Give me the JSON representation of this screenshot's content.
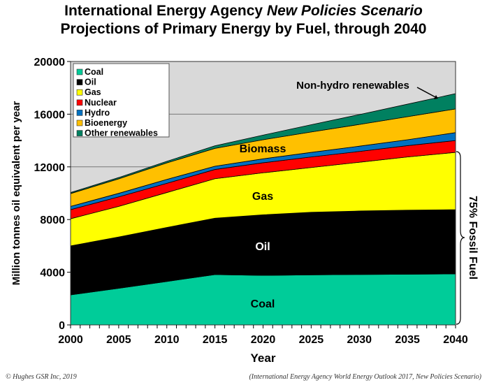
{
  "title_line1_prefix": "International Energy Agency ",
  "title_line1_italic": "New Policies Scenario",
  "title_line2": "Projections of Primary Energy by Fuel, through 2040",
  "footer_left": "© Hughes GSR Inc, 2019",
  "footer_right": "(International Energy Agency World Energy Outlook 2017, New Policies Scenario)",
  "chart_data": {
    "type": "area",
    "stacked": true,
    "title": "International Energy Agency New Policies Scenario Projections of Primary Energy by Fuel, through 2040",
    "xlabel": "Year",
    "ylabel": "Million tonnes oil equivalent per year",
    "xlim": [
      2000,
      2040
    ],
    "ylim": [
      0,
      20000
    ],
    "x": [
      2000,
      2005,
      2010,
      2015,
      2020,
      2025,
      2030,
      2035,
      2040
    ],
    "xticks": [
      "2000",
      "2005",
      "2010",
      "2015",
      "2020",
      "2025",
      "2030",
      "2035",
      "2040"
    ],
    "yticks": [
      "0",
      "4000",
      "8000",
      "12000",
      "16000",
      "20000"
    ],
    "grid": "horizontal",
    "legend": "top-left",
    "series": [
      {
        "name": "Coal",
        "color": "#00cc99",
        "values": [
          2280,
          2780,
          3300,
          3820,
          3760,
          3800,
          3830,
          3850,
          3870
        ]
      },
      {
        "name": "Oil",
        "color": "#000000",
        "values": [
          3720,
          3900,
          4100,
          4280,
          4600,
          4750,
          4820,
          4860,
          4880
        ]
      },
      {
        "name": "Gas",
        "color": "#ffff00",
        "values": [
          2060,
          2320,
          2650,
          3000,
          3190,
          3400,
          3700,
          4040,
          4350
        ]
      },
      {
        "name": "Nuclear",
        "color": "#ff0000",
        "values": [
          690,
          720,
          700,
          700,
          760,
          800,
          820,
          860,
          900
        ]
      },
      {
        "name": "Hydro",
        "color": "#0070c0",
        "values": [
          250,
          270,
          300,
          250,
          300,
          350,
          400,
          450,
          600
        ]
      },
      {
        "name": "Bioenergy",
        "color": "#ffc000",
        "values": [
          970,
          1100,
          1250,
          1350,
          1450,
          1550,
          1650,
          1750,
          1800
        ]
      },
      {
        "name": "Other renewables",
        "color": "#008060",
        "values": [
          80,
          100,
          120,
          200,
          350,
          550,
          750,
          950,
          1160
        ]
      }
    ],
    "annotations": {
      "coal": "Coal",
      "oil": "Oil",
      "gas": "Gas",
      "biomass": "Biomass",
      "nonhydro": "Non-hydro renewables",
      "fossil": "75% Fossil Fuel"
    }
  }
}
